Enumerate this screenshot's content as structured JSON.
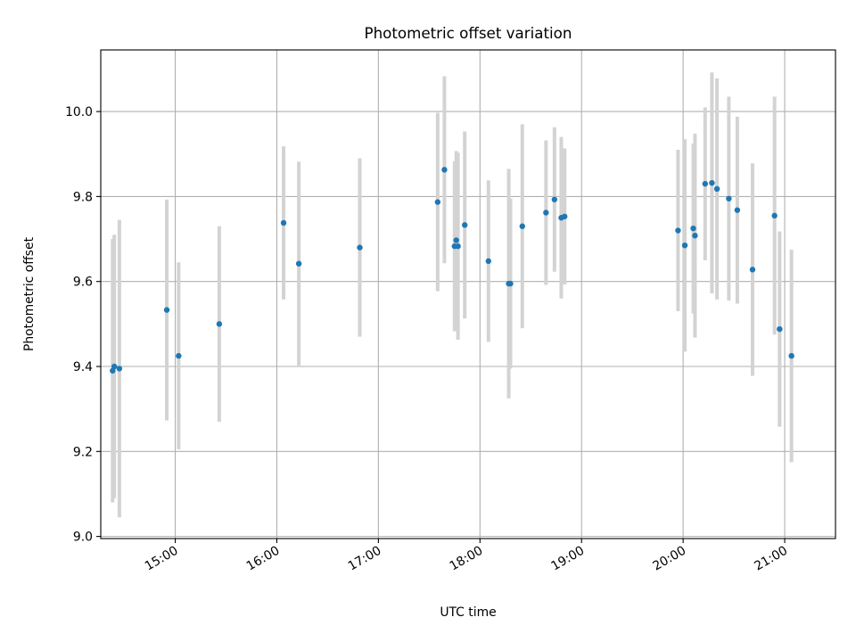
{
  "chart_data": {
    "type": "scatter",
    "title": "Photometric offset variation",
    "xlabel": "UTC time",
    "ylabel": "Photometric offset",
    "grid": true,
    "legend": "none",
    "colors": {
      "points": "#1f77b4",
      "error_bars": "#d3d3d3",
      "grid": "#b0b0b0"
    },
    "xlim": [
      "14:16",
      "21:30"
    ],
    "ylim": [
      8.995,
      10.145
    ],
    "x_ticks": [
      "15:00",
      "16:00",
      "17:00",
      "18:00",
      "19:00",
      "20:00",
      "21:00"
    ],
    "y_ticks": [
      "9.0",
      "9.2",
      "9.4",
      "9.6",
      "9.8",
      "10.0"
    ],
    "series": [
      {
        "points": [
          {
            "x": "14:23",
            "y": 9.39,
            "yerr": 0.31
          },
          {
            "x": "14:24",
            "y": 9.4,
            "yerr": 0.31
          },
          {
            "x": "14:27",
            "y": 9.395,
            "yerr": 0.35
          },
          {
            "x": "14:55",
            "y": 9.533,
            "yerr": 0.26
          },
          {
            "x": "15:02",
            "y": 9.425,
            "yerr": 0.22
          },
          {
            "x": "15:26",
            "y": 9.5,
            "yerr": 0.23
          },
          {
            "x": "16:04",
            "y": 9.738,
            "yerr": 0.18
          },
          {
            "x": "16:13",
            "y": 9.642,
            "yerr": 0.24
          },
          {
            "x": "16:49",
            "y": 9.68,
            "yerr": 0.21
          },
          {
            "x": "17:35",
            "y": 9.787,
            "yerr": 0.21
          },
          {
            "x": "17:39",
            "y": 9.863,
            "yerr": 0.22
          },
          {
            "x": "17:45",
            "y": 9.683,
            "yerr": 0.2
          },
          {
            "x": "17:46",
            "y": 9.697,
            "yerr": 0.21
          },
          {
            "x": "17:47",
            "y": 9.683,
            "yerr": 0.22
          },
          {
            "x": "17:51",
            "y": 9.733,
            "yerr": 0.22
          },
          {
            "x": "18:05",
            "y": 9.648,
            "yerr": 0.19
          },
          {
            "x": "18:17",
            "y": 9.595,
            "yerr": 0.27
          },
          {
            "x": "18:18",
            "y": 9.595,
            "yerr": 0.2
          },
          {
            "x": "18:25",
            "y": 9.73,
            "yerr": 0.24
          },
          {
            "x": "18:39",
            "y": 9.762,
            "yerr": 0.17
          },
          {
            "x": "18:44",
            "y": 9.793,
            "yerr": 0.17
          },
          {
            "x": "18:48",
            "y": 9.75,
            "yerr": 0.19
          },
          {
            "x": "18:50",
            "y": 9.753,
            "yerr": 0.16
          },
          {
            "x": "19:57",
            "y": 9.72,
            "yerr": 0.19
          },
          {
            "x": "20:01",
            "y": 9.685,
            "yerr": 0.25
          },
          {
            "x": "20:06",
            "y": 9.725,
            "yerr": 0.2
          },
          {
            "x": "20:07",
            "y": 9.708,
            "yerr": 0.24
          },
          {
            "x": "20:13",
            "y": 9.83,
            "yerr": 0.18
          },
          {
            "x": "20:17",
            "y": 9.832,
            "yerr": 0.26
          },
          {
            "x": "20:20",
            "y": 9.818,
            "yerr": 0.26
          },
          {
            "x": "20:27",
            "y": 9.795,
            "yerr": 0.24
          },
          {
            "x": "20:32",
            "y": 9.768,
            "yerr": 0.22
          },
          {
            "x": "20:41",
            "y": 9.628,
            "yerr": 0.25
          },
          {
            "x": "20:54",
            "y": 9.755,
            "yerr": 0.28
          },
          {
            "x": "20:57",
            "y": 9.488,
            "yerr": 0.23
          },
          {
            "x": "21:04",
            "y": 9.425,
            "yerr": 0.25
          }
        ]
      }
    ]
  }
}
